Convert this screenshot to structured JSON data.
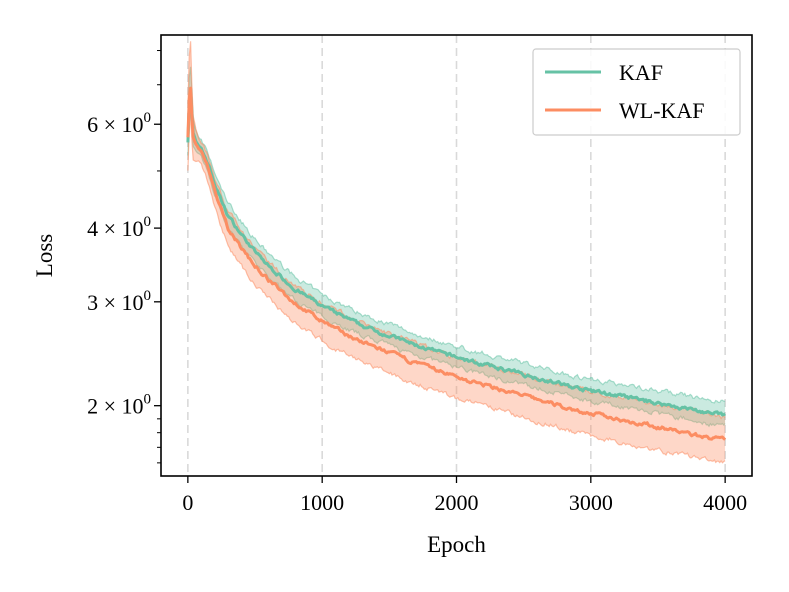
{
  "chart_data": {
    "type": "line",
    "title": "",
    "xlabel": "Epoch",
    "ylabel": "Loss",
    "yscale": "log",
    "xlim": [
      -200,
      4200
    ],
    "ylim": [
      1.52,
      8.5
    ],
    "xticks": [
      {
        "value": 0,
        "label": "0"
      },
      {
        "value": 1000,
        "label": "1000"
      },
      {
        "value": 2000,
        "label": "2000"
      },
      {
        "value": 3000,
        "label": "3000"
      },
      {
        "value": 4000,
        "label": "4000"
      }
    ],
    "yticks": [
      {
        "value": 2,
        "base": "2 × 10",
        "exp": "0"
      },
      {
        "value": 3,
        "base": "3 × 10",
        "exp": "0"
      },
      {
        "value": 4,
        "base": "4 × 10",
        "exp": "0"
      },
      {
        "value": 6,
        "base": "6 × 10",
        "exp": "0"
      }
    ],
    "yminor": [
      5,
      7,
      8
    ],
    "grid": "vertical dashed",
    "legend_position": "top-right",
    "series": [
      {
        "name": "KAF",
        "color": "#66c2a5",
        "x": [
          0,
          10,
          20,
          30,
          40,
          60,
          80,
          100,
          150,
          200,
          250,
          300,
          400,
          500,
          600,
          700,
          800,
          900,
          1000,
          1100,
          1200,
          1300,
          1400,
          1500,
          1600,
          1700,
          1800,
          1900,
          2000,
          2100,
          2200,
          2300,
          2400,
          2500,
          2600,
          2700,
          2800,
          2900,
          3000,
          3100,
          3200,
          3300,
          3400,
          3500,
          3600,
          3700,
          3800,
          3900,
          4000
        ],
        "mean": [
          5.6,
          6.5,
          6.9,
          6.3,
          5.8,
          5.6,
          5.5,
          5.45,
          5.15,
          4.75,
          4.45,
          4.2,
          3.9,
          3.65,
          3.45,
          3.3,
          3.15,
          3.05,
          2.95,
          2.87,
          2.8,
          2.73,
          2.68,
          2.63,
          2.58,
          2.53,
          2.49,
          2.45,
          2.42,
          2.38,
          2.35,
          2.32,
          2.29,
          2.26,
          2.23,
          2.2,
          2.17,
          2.14,
          2.12,
          2.1,
          2.08,
          2.06,
          2.04,
          2.02,
          2.0,
          1.98,
          1.96,
          1.94,
          1.93
        ],
        "lower": [
          5.3,
          6.0,
          6.4,
          5.9,
          5.5,
          5.4,
          5.35,
          5.3,
          5.0,
          4.55,
          4.25,
          4.0,
          3.72,
          3.48,
          3.3,
          3.15,
          3.02,
          2.92,
          2.83,
          2.76,
          2.69,
          2.63,
          2.58,
          2.53,
          2.48,
          2.44,
          2.4,
          2.36,
          2.33,
          2.29,
          2.26,
          2.23,
          2.2,
          2.17,
          2.14,
          2.12,
          2.09,
          2.06,
          2.04,
          2.02,
          2.0,
          1.98,
          1.96,
          1.94,
          1.92,
          1.9,
          1.88,
          1.86,
          1.85
        ],
        "upper": [
          6.0,
          7.2,
          7.5,
          6.8,
          6.1,
          5.85,
          5.7,
          5.6,
          5.35,
          4.95,
          4.65,
          4.42,
          4.1,
          3.83,
          3.62,
          3.46,
          3.3,
          3.19,
          3.08,
          3.0,
          2.93,
          2.86,
          2.8,
          2.75,
          2.7,
          2.64,
          2.6,
          2.56,
          2.52,
          2.48,
          2.45,
          2.42,
          2.39,
          2.36,
          2.33,
          2.3,
          2.27,
          2.24,
          2.22,
          2.2,
          2.18,
          2.16,
          2.14,
          2.12,
          2.1,
          2.08,
          2.06,
          2.04,
          2.03
        ]
      },
      {
        "name": "WL-KAF",
        "color": "#fc8d62",
        "x": [
          0,
          10,
          20,
          30,
          40,
          60,
          80,
          100,
          150,
          200,
          250,
          300,
          400,
          500,
          600,
          700,
          800,
          900,
          1000,
          1100,
          1200,
          1300,
          1400,
          1500,
          1600,
          1700,
          1800,
          1900,
          2000,
          2100,
          2200,
          2300,
          2400,
          2500,
          2600,
          2700,
          2800,
          2900,
          3000,
          3100,
          3200,
          3300,
          3400,
          3500,
          3600,
          3700,
          3800,
          3900,
          4000
        ],
        "mean": [
          5.7,
          6.6,
          6.9,
          6.2,
          5.7,
          5.55,
          5.45,
          5.4,
          5.05,
          4.6,
          4.28,
          4.0,
          3.7,
          3.45,
          3.27,
          3.12,
          2.98,
          2.88,
          2.78,
          2.7,
          2.63,
          2.56,
          2.51,
          2.46,
          2.41,
          2.36,
          2.32,
          2.28,
          2.24,
          2.2,
          2.17,
          2.14,
          2.11,
          2.08,
          2.05,
          2.02,
          1.99,
          1.96,
          1.94,
          1.92,
          1.9,
          1.88,
          1.86,
          1.84,
          1.82,
          1.8,
          1.78,
          1.76,
          1.75
        ],
        "lower": [
          5.0,
          5.8,
          6.2,
          5.6,
          5.2,
          5.2,
          5.2,
          5.15,
          4.8,
          4.35,
          4.0,
          3.74,
          3.45,
          3.21,
          3.04,
          2.9,
          2.77,
          2.67,
          2.58,
          2.5,
          2.43,
          2.37,
          2.32,
          2.27,
          2.22,
          2.18,
          2.14,
          2.1,
          2.06,
          2.03,
          2.0,
          1.97,
          1.94,
          1.91,
          1.88,
          1.86,
          1.83,
          1.8,
          1.78,
          1.76,
          1.74,
          1.72,
          1.7,
          1.68,
          1.66,
          1.65,
          1.63,
          1.61,
          1.6
        ],
        "upper": [
          6.5,
          7.8,
          8.3,
          7.0,
          6.2,
          5.9,
          5.7,
          5.6,
          5.3,
          4.85,
          4.55,
          4.28,
          3.96,
          3.7,
          3.5,
          3.34,
          3.2,
          3.09,
          2.99,
          2.9,
          2.83,
          2.76,
          2.7,
          2.65,
          2.6,
          2.55,
          2.5,
          2.46,
          2.42,
          2.38,
          2.35,
          2.32,
          2.29,
          2.26,
          2.23,
          2.2,
          2.17,
          2.14,
          2.11,
          2.09,
          2.07,
          2.05,
          2.03,
          2.01,
          1.99,
          1.97,
          1.95,
          1.93,
          1.91
        ]
      }
    ]
  }
}
